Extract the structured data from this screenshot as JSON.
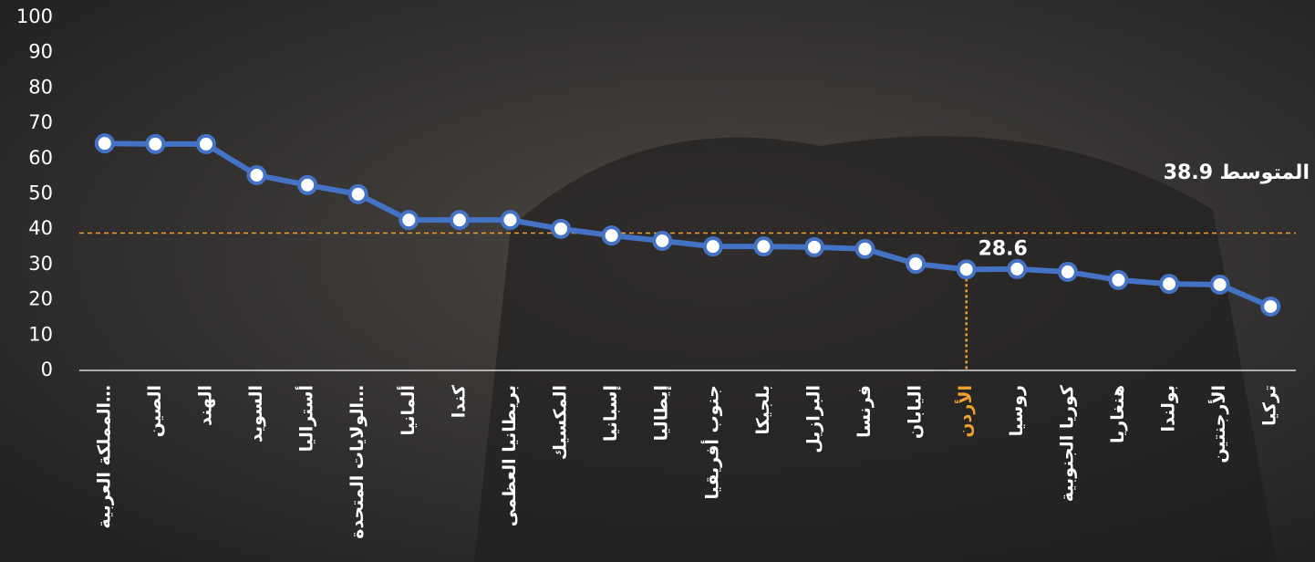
{
  "chart_data": {
    "type": "line",
    "categories": [
      "المملكة العربية…",
      "الصين",
      "الهند",
      "السويد",
      "أستراليا",
      "الولايات المتحدة…",
      "ألمانيا",
      "كندا",
      "بريطانيا العظمى",
      "المكسيك",
      "إسبانيا",
      "إيطاليا",
      "جنوب أفريقيا",
      "بلجيكا",
      "البرازيل",
      "فرنسا",
      "اليابان",
      "الأردن",
      "روسيا",
      "كوريا الجنوبية",
      "هنغاريا",
      "بولندا",
      "الأرجنتين",
      "تركيا"
    ],
    "values": [
      64.3,
      64.1,
      64.1,
      55.3,
      52.5,
      49.9,
      42.6,
      42.6,
      42.6,
      40.1,
      38.2,
      36.7,
      35.1,
      35.1,
      34.9,
      34.4,
      30.2,
      28.6,
      28.7,
      27.9,
      25.6,
      24.5,
      24.3,
      18.1
    ],
    "color": "#4472c4",
    "ylim": [
      0,
      100
    ],
    "yticks": [
      0,
      10,
      20,
      30,
      40,
      50,
      60,
      70,
      80,
      90,
      100
    ],
    "average": 38.9,
    "average_label": "المتوسط",
    "highlight_index": 17,
    "highlight_color": "#f0a030"
  }
}
